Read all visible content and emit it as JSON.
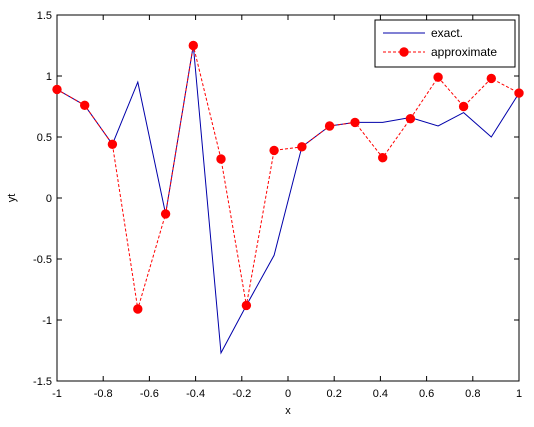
{
  "chart_data": {
    "type": "line",
    "title": "",
    "xlabel": "x",
    "ylabel": "yt",
    "xlim": [
      -1,
      1
    ],
    "ylim": [
      -1.5,
      1.5
    ],
    "xticks": [
      -1,
      -0.8,
      -0.6,
      -0.4,
      -0.2,
      0,
      0.2,
      0.4,
      0.6,
      0.8,
      1
    ],
    "xtick_labels": [
      "-1",
      "-0.8",
      "-0.6",
      "-0.4",
      "-0.2",
      "0",
      "0.2",
      "0.4",
      "0.6",
      "0.8",
      "1"
    ],
    "yticks": [
      -1.5,
      -1,
      -0.5,
      0,
      0.5,
      1,
      1.5
    ],
    "ytick_labels": [
      "-1.5",
      "-1",
      "-0.5",
      "0",
      "0.5",
      "1",
      "1.5"
    ],
    "grid": false,
    "legend_position": "top-right",
    "series": [
      {
        "name": "exact.",
        "color": "#0000aa",
        "style": "solid",
        "marker": "none",
        "x": [
          -1.0,
          -0.88,
          -0.76,
          -0.65,
          -0.53,
          -0.41,
          -0.29,
          -0.18,
          -0.06,
          0.06,
          0.18,
          0.29,
          0.41,
          0.53,
          0.65,
          0.76,
          0.88,
          1.0
        ],
        "y": [
          0.89,
          0.76,
          0.44,
          0.95,
          -0.13,
          1.25,
          -1.27,
          -0.88,
          -0.47,
          0.42,
          0.59,
          0.62,
          0.62,
          0.66,
          0.59,
          0.7,
          0.5,
          0.86
        ]
      },
      {
        "name": "approximate",
        "color": "#ff0000",
        "style": "dashed",
        "marker": "circle",
        "x": [
          -1.0,
          -0.88,
          -0.76,
          -0.65,
          -0.53,
          -0.41,
          -0.29,
          -0.18,
          -0.06,
          0.06,
          0.18,
          0.29,
          0.41,
          0.53,
          0.65,
          0.76,
          0.88,
          1.0
        ],
        "y": [
          0.89,
          0.76,
          0.44,
          -0.91,
          -0.13,
          1.25,
          0.32,
          -0.88,
          0.39,
          0.42,
          0.59,
          0.62,
          0.33,
          0.65,
          0.99,
          0.75,
          0.98,
          0.86
        ]
      }
    ]
  }
}
